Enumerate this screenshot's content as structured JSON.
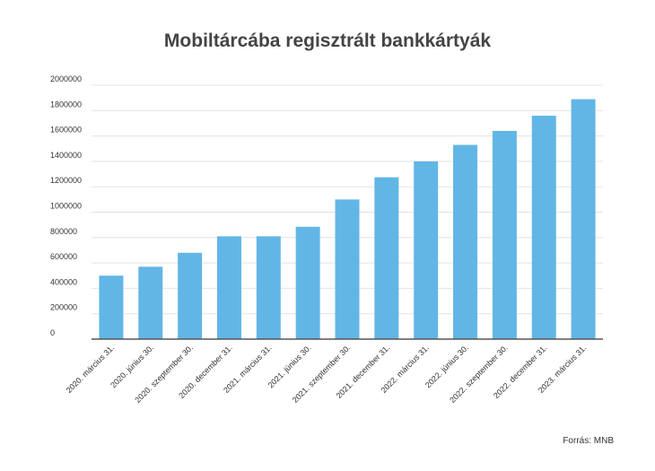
{
  "chart_data": {
    "type": "bar",
    "title": "Mobiltárcába regisztrált bankkártyák",
    "xlabel": "",
    "ylabel": "",
    "categories": [
      "2020. március 31.",
      "2020. június 30.",
      "2020. szeptember 30.",
      "2020. december 31.",
      "2021. március 31.",
      "2021. június 30.",
      "2021. szeptember 30.",
      "2021. december 31.",
      "2022. március 31.",
      "2022. június 30.",
      "2022. szeptember 30.",
      "2022. december 31.",
      "2023. március 31."
    ],
    "values": [
      500000,
      570000,
      680000,
      810000,
      810000,
      885000,
      1100000,
      1275000,
      1400000,
      1530000,
      1640000,
      1760000,
      1890000
    ],
    "ylim": [
      0,
      2000000
    ],
    "yticks": [
      "0",
      "200000",
      "400000",
      "600000",
      "800000",
      "1000000",
      "1200000",
      "1400000",
      "1600000",
      "1800000",
      "2000000"
    ],
    "grid": true,
    "legend": "none",
    "bar_color": "#62b6e5",
    "grid_color": "#e3e3e3",
    "axis_color": "#555555"
  },
  "source": "Forrás: MNB"
}
